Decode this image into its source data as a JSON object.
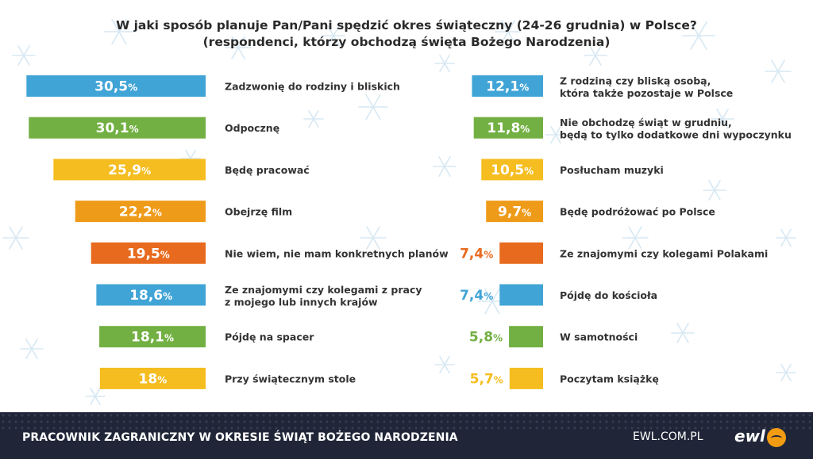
{
  "title_line1": "W jaki sposób planuje Pan/Pani spędzić okres świąteczny (24-26 grudnia) w Polsce?",
  "title_line2": "(respondenci, którzy obchodzą święta Bożego Narodzenia)",
  "footer": {
    "title": "PRACOWNIK ZAGRANICZNY W OKRESIE ŚWIĄT BOŻEGO NARODZENIA",
    "site": "EWL.COM.PL",
    "logo_text": "ewl"
  },
  "colors": {
    "blue": "#41a4d6",
    "green": "#72b043",
    "yellow": "#f5bd1f",
    "orange": "#ef9b1a",
    "red": "#e86a1e"
  },
  "chart_data": {
    "type": "bar",
    "unit": "%",
    "series": [
      {
        "bars": [
          {
            "label": "Zadzwonię do rodziny i bliskich",
            "value": 30.5,
            "display": "30,5",
            "color": "#41a4d6"
          },
          {
            "label": "Odpocznę",
            "value": 30.1,
            "display": "30,1",
            "color": "#72b043"
          },
          {
            "label": "Będę pracować",
            "value": 25.9,
            "display": "25,9",
            "color": "#f5bd1f"
          },
          {
            "label": "Obejrzę film",
            "value": 22.2,
            "display": "22,2",
            "color": "#ef9b1a"
          },
          {
            "label": "Nie wiem, nie mam konkretnych planów",
            "value": 19.5,
            "display": "19,5",
            "color": "#e86a1e"
          },
          {
            "label": [
              "Ze znajomymi czy kolegami z pracy",
              "z mojego lub innych krajów"
            ],
            "value": 18.6,
            "display": "18,6",
            "color": "#41a4d6"
          },
          {
            "label": "Pójdę na spacer",
            "value": 18.1,
            "display": "18,1",
            "color": "#72b043"
          },
          {
            "label": "Przy świątecznym stole",
            "value": 18,
            "display": "18",
            "color": "#f5bd1f"
          }
        ]
      },
      {
        "bars": [
          {
            "label": [
              "Z rodziną czy bliską osobą,",
              "która także pozostaje w Polsce"
            ],
            "value": 12.1,
            "display": "12,1",
            "color": "#41a4d6"
          },
          {
            "label": [
              "Nie obchodzę świąt w grudniu,",
              "będą to tylko dodatkowe dni wypoczynku"
            ],
            "value": 11.8,
            "display": "11,8",
            "color": "#72b043"
          },
          {
            "label": "Posłucham muzyki",
            "value": 10.5,
            "display": "10,5",
            "color": "#f5bd1f"
          },
          {
            "label": "Będę podróżować po Polsce",
            "value": 9.7,
            "display": "9,7",
            "color": "#ef9b1a"
          },
          {
            "label": "Ze znajomymi czy kolegami Polakami",
            "value": 7.4,
            "display": "7,4",
            "color": "#e86a1e"
          },
          {
            "label": "Pójdę do kościoła",
            "value": 7.4,
            "display": "7,4",
            "color": "#41a4d6"
          },
          {
            "label": "W samotności",
            "value": 5.8,
            "display": "5,8",
            "color": "#72b043"
          },
          {
            "label": "Poczytam książkę",
            "value": 5.7,
            "display": "5,7",
            "color": "#f5bd1f"
          }
        ]
      }
    ]
  }
}
